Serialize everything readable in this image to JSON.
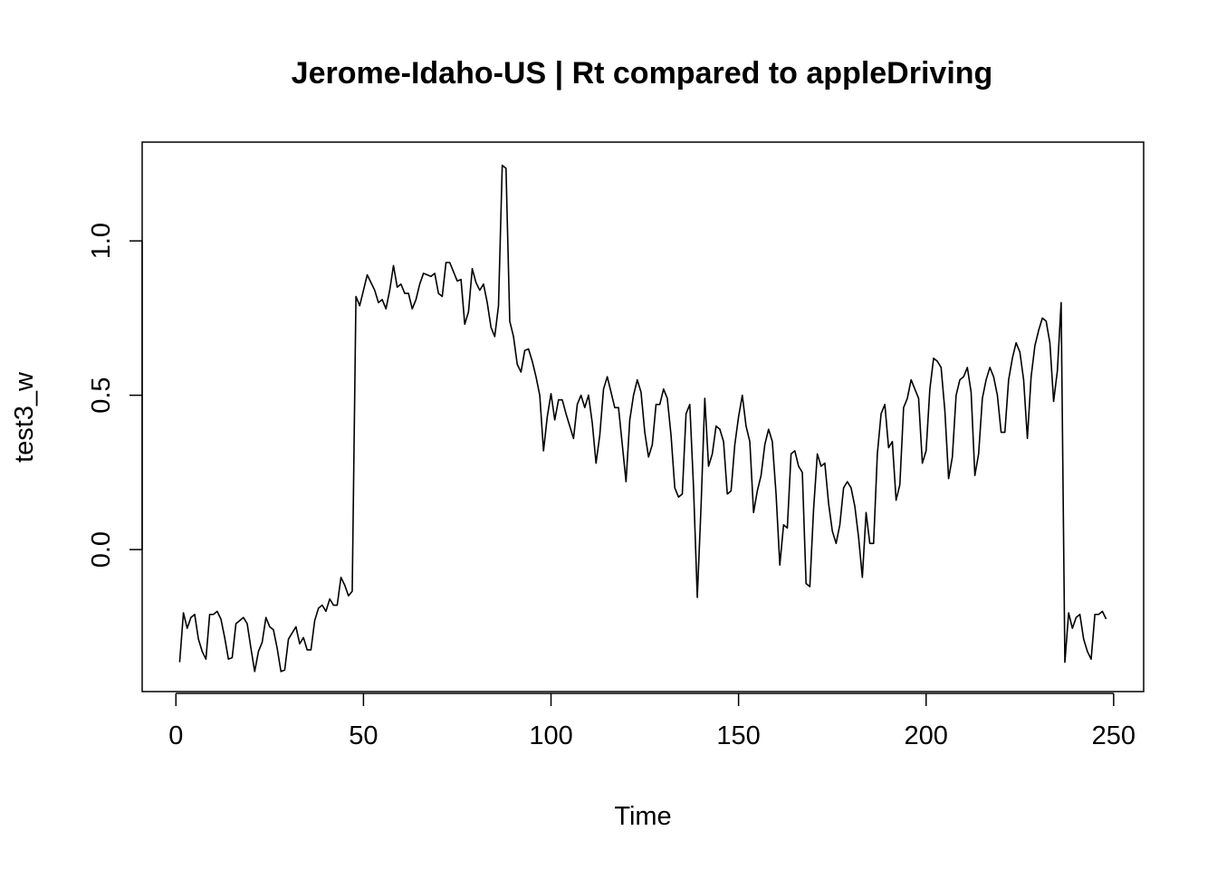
{
  "chart_data": {
    "type": "line",
    "title": "Jerome-Idaho-US | Rt compared to appleDriving",
    "xlabel": "Time",
    "ylabel": "test3_w",
    "xlim": [
      -9,
      258
    ],
    "ylim": [
      -0.46,
      1.32
    ],
    "x_ticks": [
      0,
      50,
      100,
      150,
      200,
      250
    ],
    "y_ticks": [
      0.0,
      0.5,
      1.0
    ],
    "x_tick_labels": [
      "0",
      "50",
      "100",
      "150",
      "200",
      "250"
    ],
    "y_tick_labels": [
      "0.0",
      "0.5",
      "1.0"
    ],
    "grid": false,
    "legend": "none",
    "line_color": "#000000",
    "series": [
      {
        "x_start": 1,
        "values": [
          -0.365,
          -0.205,
          -0.255,
          -0.22,
          -0.21,
          -0.29,
          -0.33,
          -0.355,
          -0.21,
          -0.21,
          -0.2,
          -0.225,
          -0.285,
          -0.355,
          -0.35,
          -0.24,
          -0.23,
          -0.22,
          -0.24,
          -0.32,
          -0.395,
          -0.33,
          -0.3,
          -0.22,
          -0.25,
          -0.26,
          -0.32,
          -0.395,
          -0.39,
          -0.29,
          -0.27,
          -0.25,
          -0.305,
          -0.285,
          -0.325,
          -0.325,
          -0.23,
          -0.19,
          -0.18,
          -0.2,
          -0.16,
          -0.18,
          -0.18,
          -0.09,
          -0.115,
          -0.15,
          -0.135,
          0.82,
          0.79,
          0.84,
          0.89,
          0.865,
          0.84,
          0.8,
          0.81,
          0.78,
          0.84,
          0.92,
          0.85,
          0.86,
          0.83,
          0.83,
          0.78,
          0.81,
          0.86,
          0.895,
          0.89,
          0.885,
          0.895,
          0.83,
          0.82,
          0.93,
          0.93,
          0.9,
          0.87,
          0.875,
          0.73,
          0.77,
          0.91,
          0.865,
          0.84,
          0.86,
          0.8,
          0.72,
          0.69,
          0.79,
          1.245,
          1.235,
          0.74,
          0.69,
          0.6,
          0.575,
          0.645,
          0.65,
          0.61,
          0.56,
          0.5,
          0.32,
          0.43,
          0.505,
          0.42,
          0.485,
          0.485,
          0.44,
          0.4,
          0.36,
          0.47,
          0.5,
          0.46,
          0.5,
          0.41,
          0.28,
          0.37,
          0.52,
          0.56,
          0.51,
          0.46,
          0.46,
          0.34,
          0.22,
          0.42,
          0.5,
          0.55,
          0.51,
          0.38,
          0.3,
          0.34,
          0.47,
          0.47,
          0.52,
          0.49,
          0.37,
          0.2,
          0.17,
          0.18,
          0.44,
          0.47,
          0.2,
          -0.155,
          0.14,
          0.49,
          0.27,
          0.31,
          0.4,
          0.39,
          0.35,
          0.18,
          0.19,
          0.34,
          0.43,
          0.5,
          0.4,
          0.35,
          0.12,
          0.19,
          0.24,
          0.34,
          0.39,
          0.35,
          0.18,
          -0.05,
          0.08,
          0.07,
          0.31,
          0.32,
          0.27,
          0.25,
          -0.11,
          -0.12,
          0.13,
          0.31,
          0.27,
          0.28,
          0.15,
          0.06,
          0.02,
          0.08,
          0.2,
          0.22,
          0.2,
          0.14,
          0.04,
          -0.09,
          0.12,
          0.02,
          0.02,
          0.31,
          0.44,
          0.47,
          0.33,
          0.35,
          0.16,
          0.21,
          0.46,
          0.49,
          0.55,
          0.52,
          0.49,
          0.28,
          0.32,
          0.52,
          0.62,
          0.61,
          0.59,
          0.45,
          0.23,
          0.3,
          0.5,
          0.55,
          0.56,
          0.59,
          0.51,
          0.24,
          0.31,
          0.49,
          0.55,
          0.59,
          0.56,
          0.5,
          0.38,
          0.38,
          0.55,
          0.62,
          0.67,
          0.64,
          0.55,
          0.36,
          0.56,
          0.66,
          0.71,
          0.75,
          0.74,
          0.67,
          0.48,
          0.58,
          0.8,
          -0.365,
          -0.205,
          -0.255,
          -0.22,
          -0.21,
          -0.29,
          -0.33,
          -0.355,
          -0.21,
          -0.21,
          -0.2,
          -0.225
        ]
      }
    ]
  }
}
